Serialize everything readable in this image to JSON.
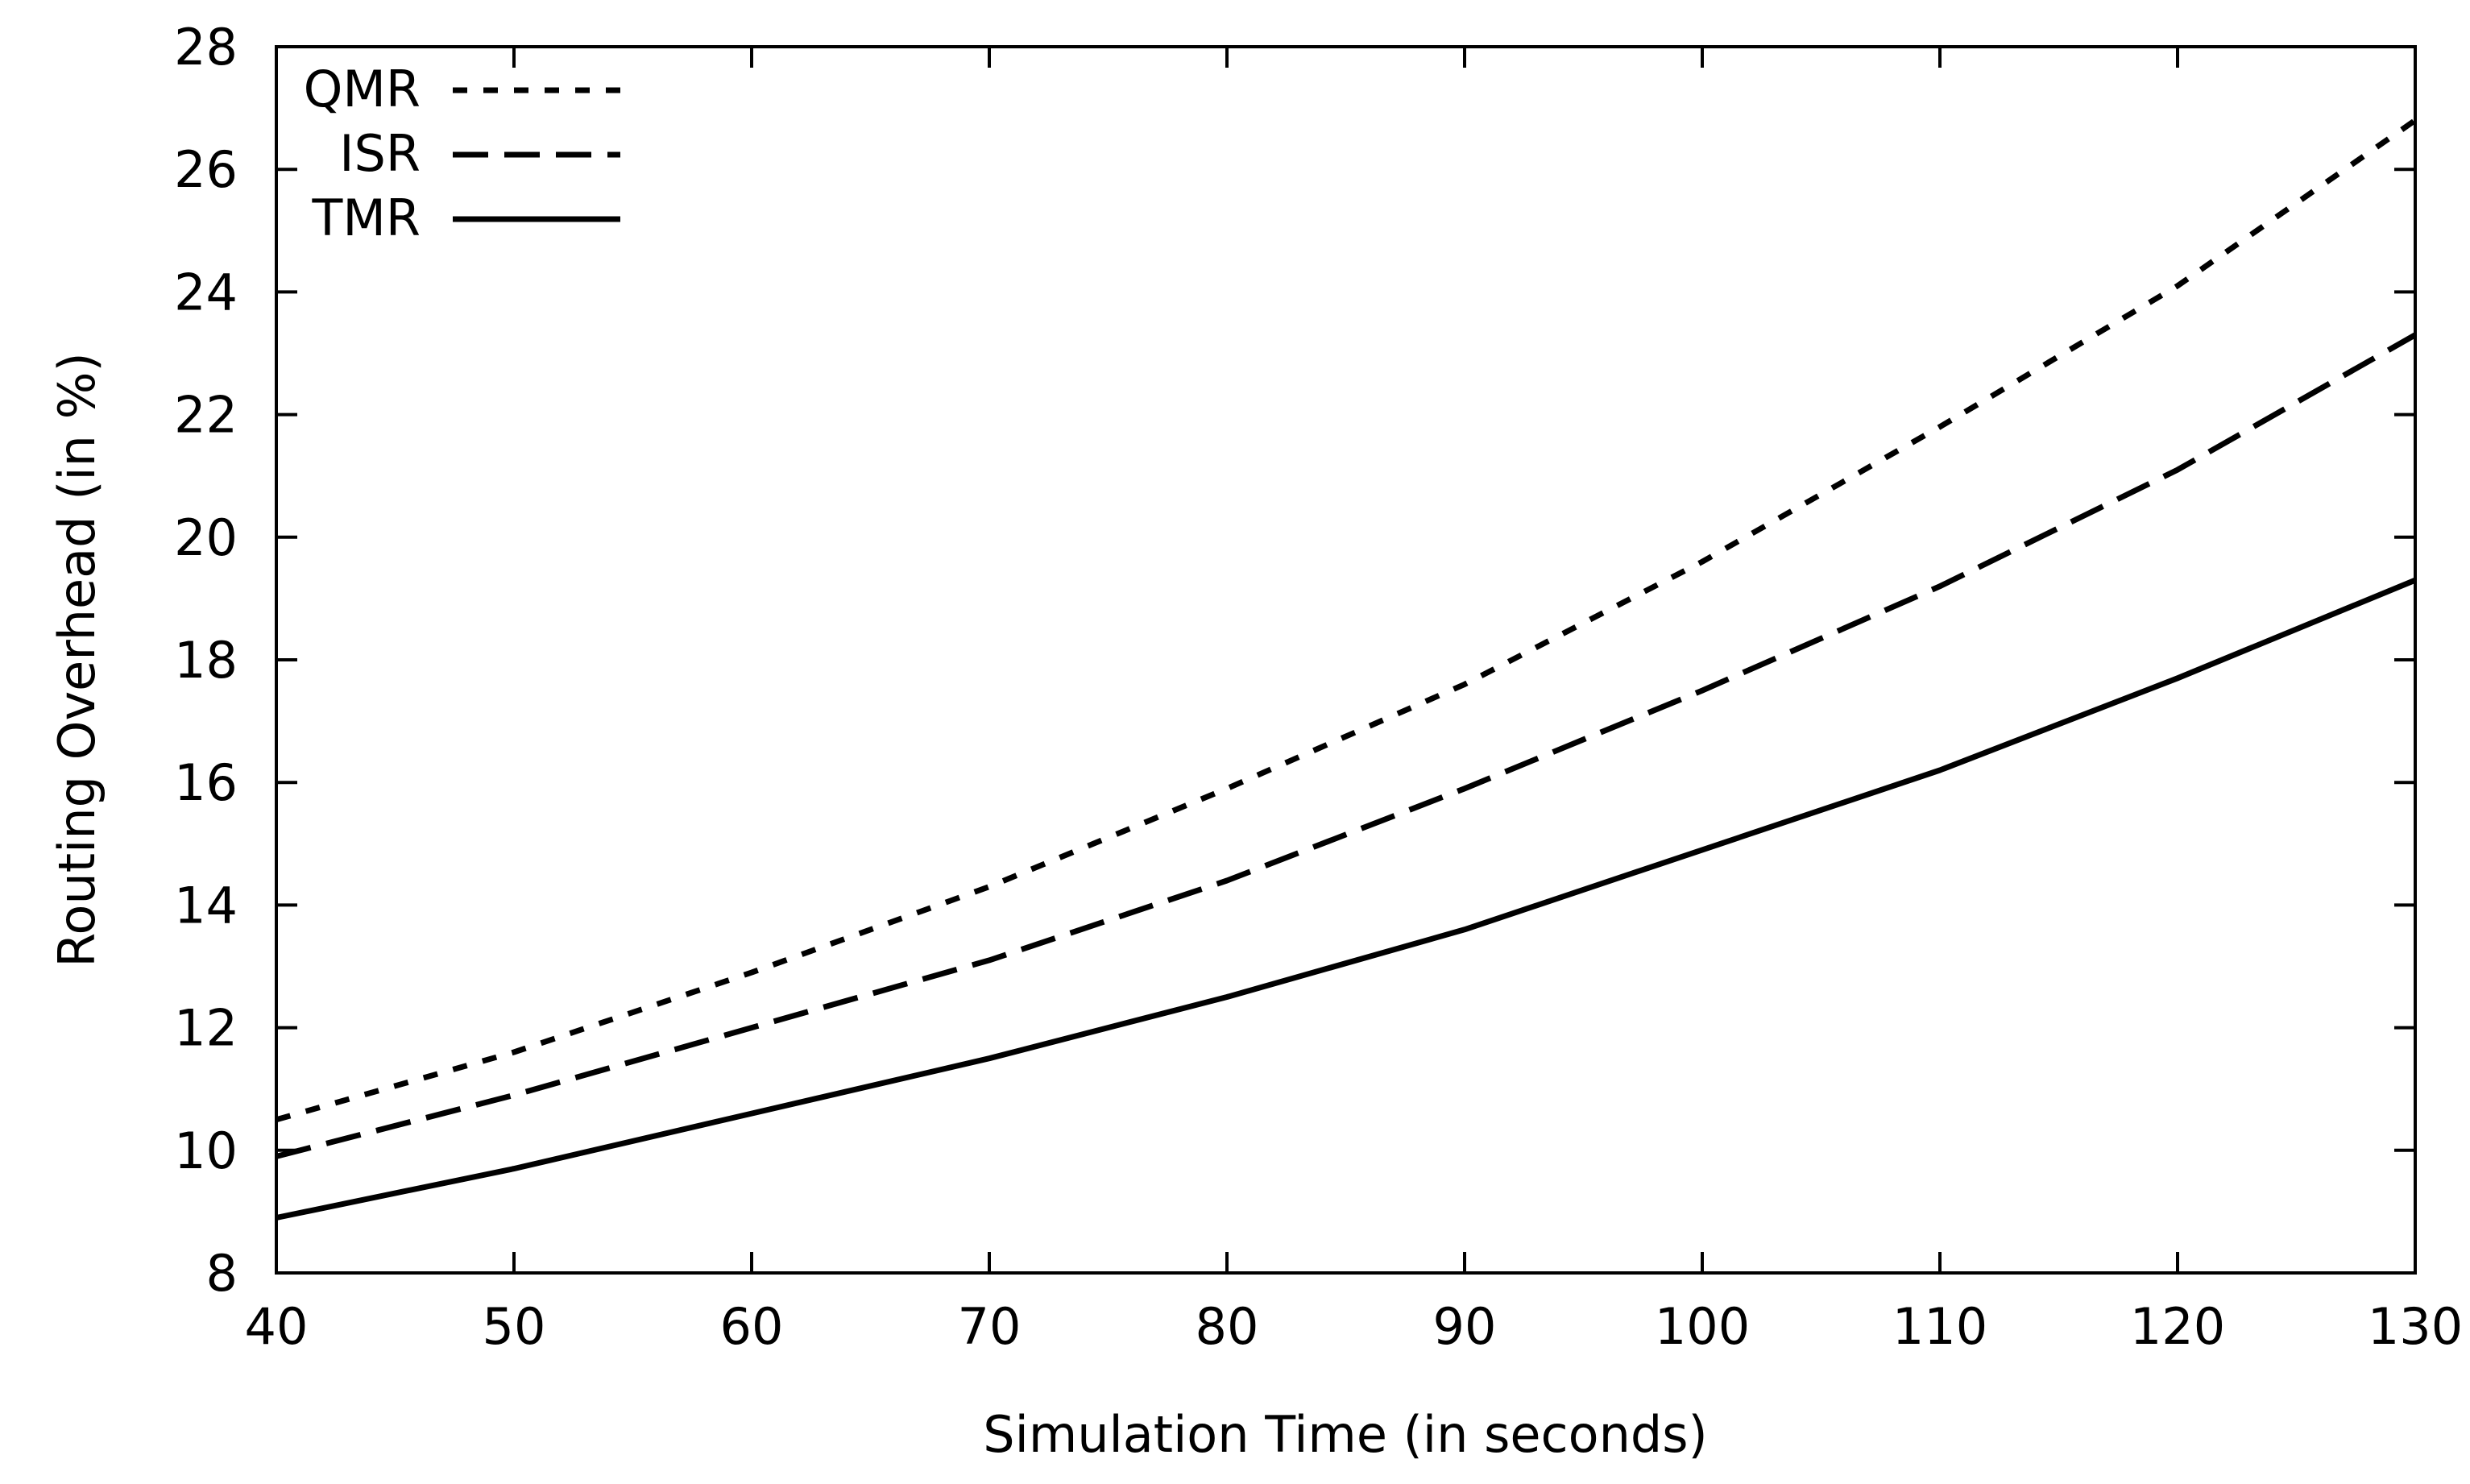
{
  "chart_data": {
    "type": "line",
    "xlabel": "Simulation Time (in seconds)",
    "ylabel": "Routing Overhead (in %)",
    "xlim": [
      40,
      130
    ],
    "ylim": [
      8,
      28
    ],
    "xticks": [
      40,
      50,
      60,
      70,
      80,
      90,
      100,
      110,
      120,
      130
    ],
    "yticks": [
      8,
      10,
      12,
      14,
      16,
      18,
      20,
      22,
      24,
      26,
      28
    ],
    "grid": false,
    "legend_position": "top-left",
    "x": [
      40,
      50,
      60,
      70,
      80,
      90,
      100,
      110,
      120,
      130
    ],
    "series": [
      {
        "name": "QMR",
        "style": "dotted",
        "color": "#000000",
        "values": [
          10.5,
          11.6,
          12.9,
          14.3,
          15.9,
          17.6,
          19.6,
          21.8,
          24.1,
          26.8
        ]
      },
      {
        "name": "ISR",
        "style": "dashed",
        "color": "#000000",
        "values": [
          9.9,
          10.9,
          12.0,
          13.1,
          14.4,
          15.9,
          17.5,
          19.2,
          21.1,
          23.3
        ]
      },
      {
        "name": "TMR",
        "style": "solid",
        "color": "#000000",
        "values": [
          8.9,
          9.7,
          10.6,
          11.5,
          12.5,
          13.6,
          14.9,
          16.2,
          17.7,
          19.3
        ]
      }
    ]
  }
}
